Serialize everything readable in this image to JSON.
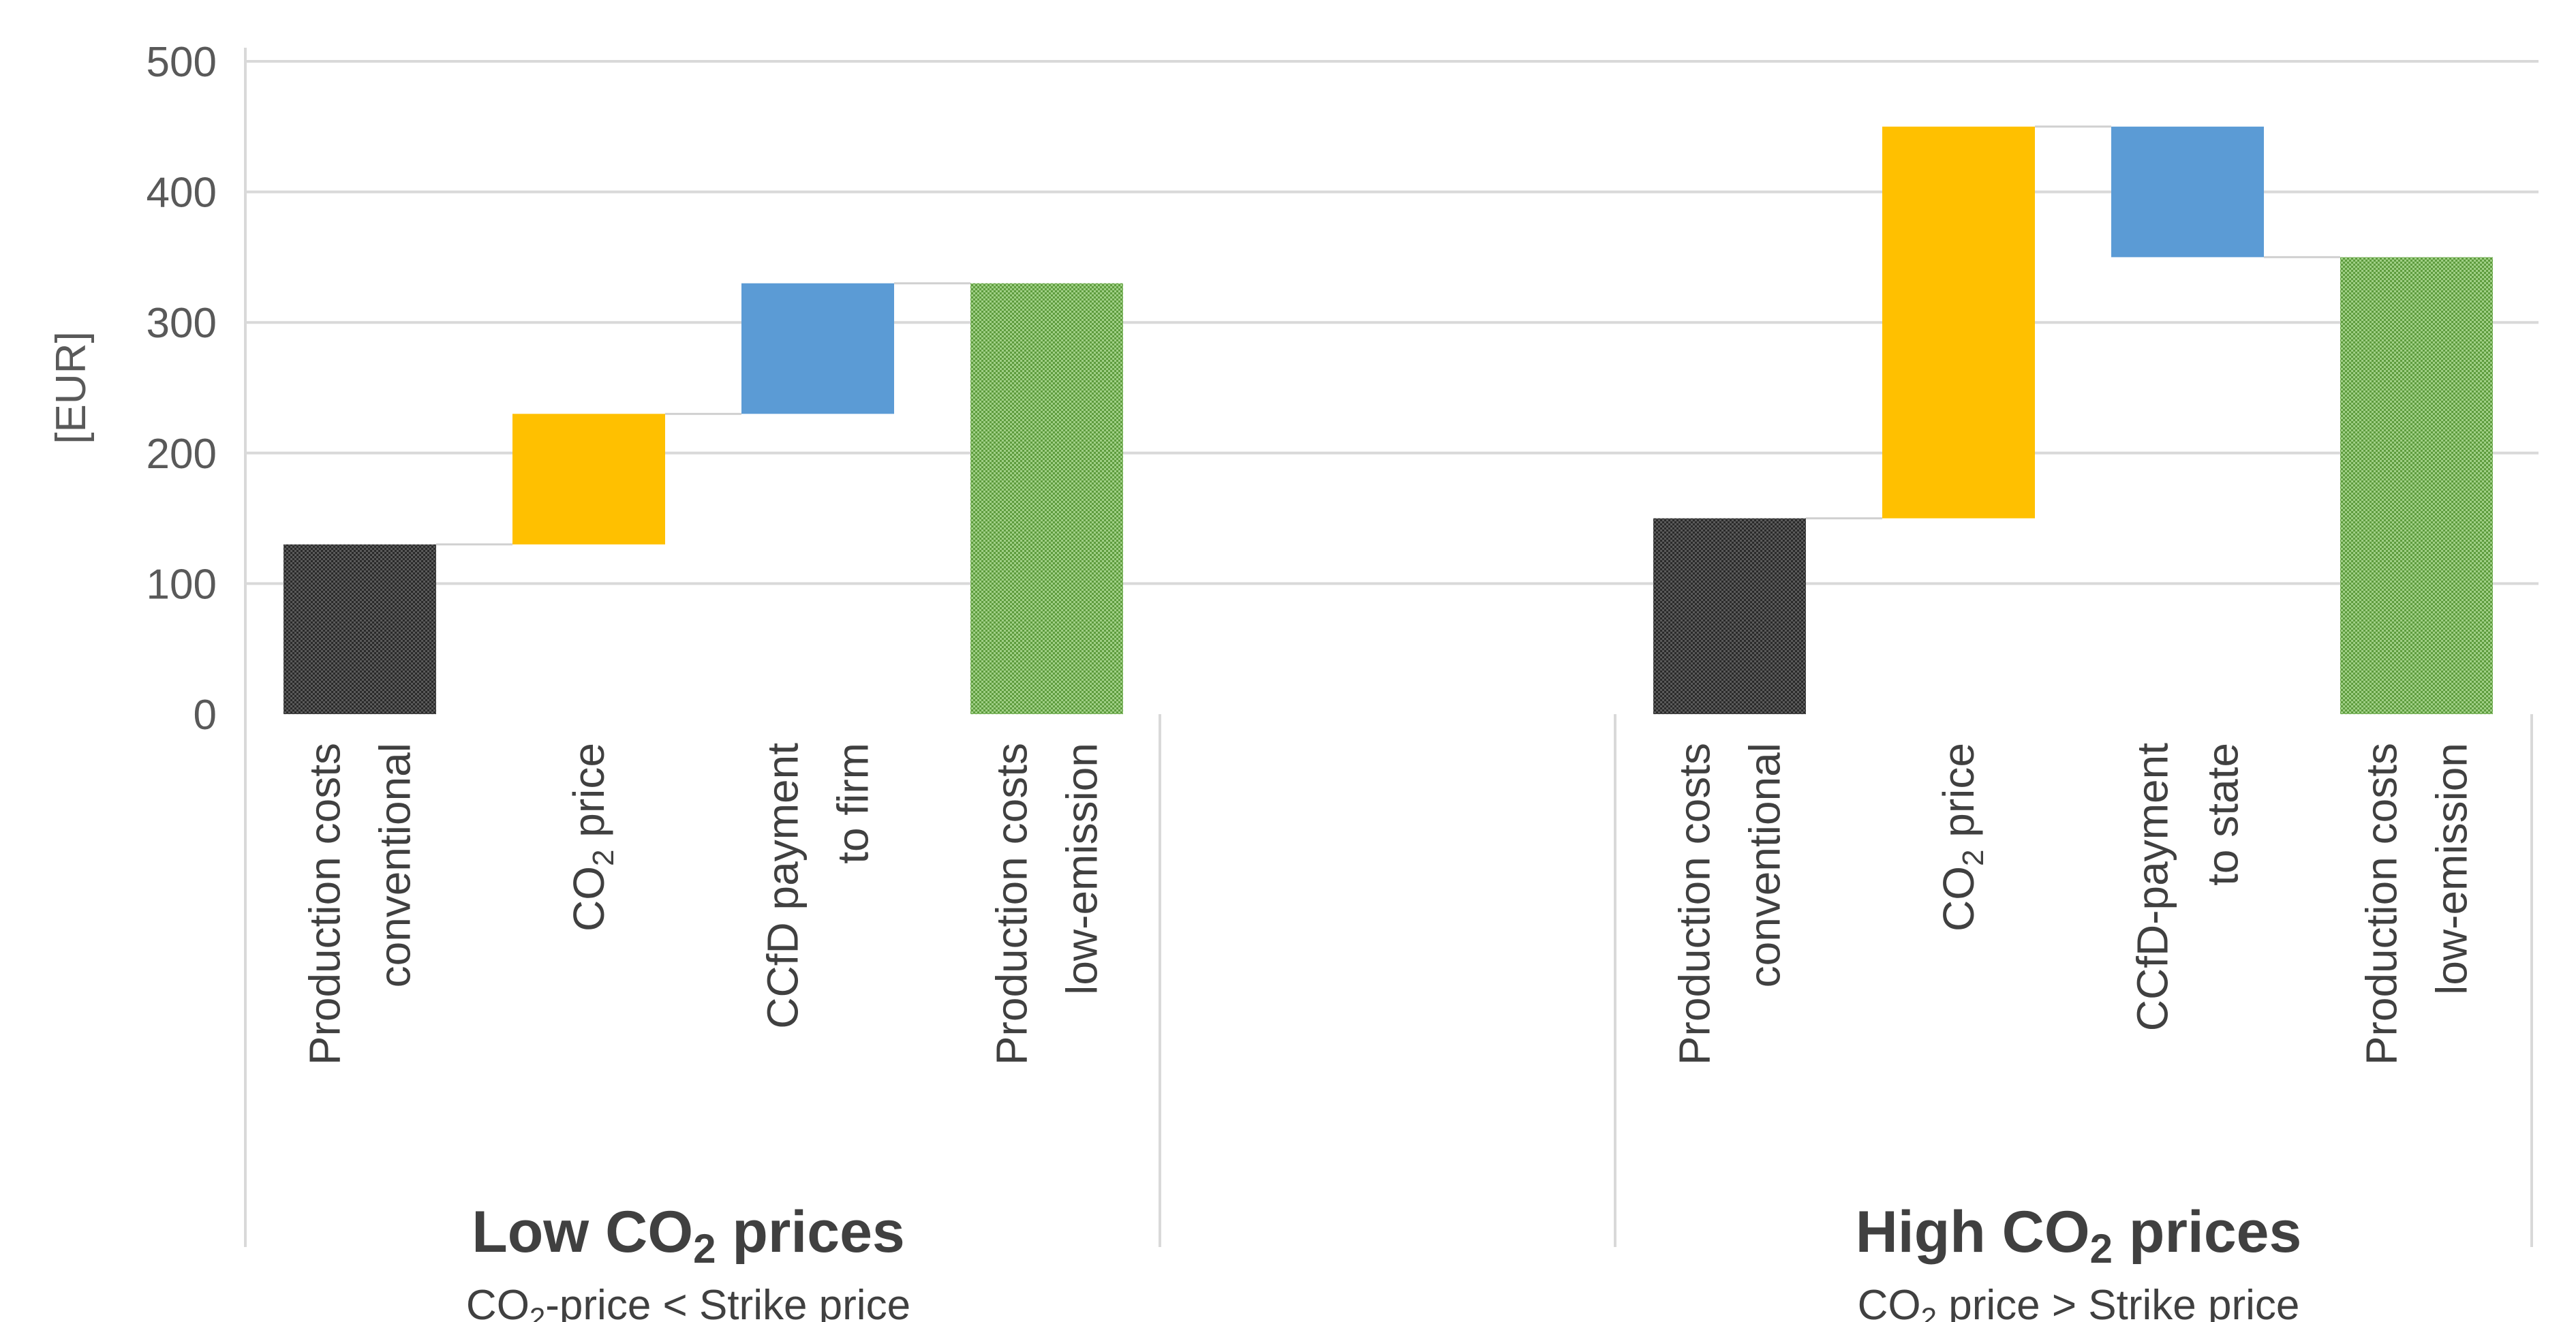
{
  "chart_data": {
    "type": "bar",
    "subtype": "waterfall",
    "ylabel": "[EUR]",
    "ylim": [
      0,
      500
    ],
    "yticks": [
      0,
      100,
      200,
      300,
      400,
      500
    ],
    "grid": true,
    "legend": "none",
    "colors": {
      "conventional": "#3f3f3f",
      "co2_price": "#ffc000",
      "ccfd": "#5b9bd5",
      "low_emission": "#70ad47",
      "grid": "#d9d9d9",
      "connector": "#d0d0d0"
    },
    "groups": [
      {
        "title_main": "Low CO",
        "title_sub": "2",
        "title_tail": " prices",
        "subtitle_main": "CO",
        "subtitle_sub": "2",
        "subtitle_tail": "-price < Strike price",
        "bars": [
          {
            "line1": "Production costs",
            "line2": "conventional",
            "base": 0,
            "top": 130,
            "kind": "conventional"
          },
          {
            "line1": "CO",
            "line1_sub": "2",
            "line1_tail": " price",
            "line2": "",
            "base": 130,
            "top": 230,
            "kind": "co2_price"
          },
          {
            "line1": "CCfD payment",
            "line2": "to firm",
            "base": 230,
            "top": 330,
            "kind": "ccfd"
          },
          {
            "line1": "Production costs",
            "line2": "low-emission",
            "base": 0,
            "top": 330,
            "kind": "low_emission"
          }
        ]
      },
      {
        "title_main": "High CO",
        "title_sub": "2",
        "title_tail": " prices",
        "subtitle_main": "CO",
        "subtitle_sub": "2",
        "subtitle_tail": " price > Strike price",
        "bars": [
          {
            "line1": "Production costs",
            "line2": "conventional",
            "base": 0,
            "top": 150,
            "kind": "conventional"
          },
          {
            "line1": "CO",
            "line1_sub": "2",
            "line1_tail": " price",
            "line2": "",
            "base": 150,
            "top": 450,
            "kind": "co2_price"
          },
          {
            "line1": "CCfD-payment",
            "line2": "to state",
            "base": 350,
            "top": 450,
            "kind": "ccfd"
          },
          {
            "line1": "Production costs",
            "line2": "low-emission",
            "base": 0,
            "top": 350,
            "kind": "low_emission"
          }
        ]
      }
    ]
  }
}
